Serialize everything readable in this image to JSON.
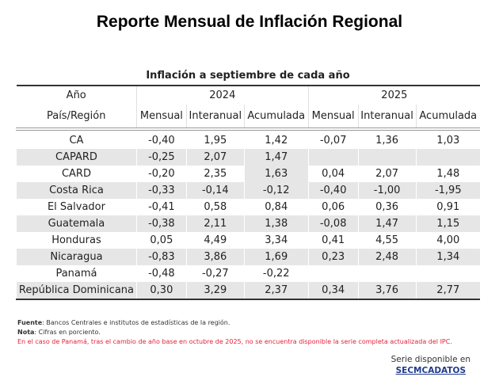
{
  "title": "Reporte Mensual de Inflación Regional",
  "subtitle": "Inflación a septiembre de cada año",
  "header": {
    "year_label": "Año",
    "region_label": "País/Región",
    "years": [
      "2024",
      "2025"
    ],
    "columns": [
      "Mensual",
      "Interanual",
      "Acumulada",
      "Mensual",
      "Interanual",
      "Acumulada"
    ]
  },
  "rows": [
    {
      "region": "CA",
      "values": [
        "-0,40",
        "1,95",
        "1,42",
        "-0,07",
        "1,36",
        "1,03"
      ]
    },
    {
      "region": "CAPARD",
      "values": [
        "-0,25",
        "2,07",
        "1,47",
        "",
        "",
        ""
      ]
    },
    {
      "region": "CARD",
      "values": [
        "-0,20",
        "2,35",
        "1,63",
        "0,04",
        "2,07",
        "1,48"
      ]
    },
    {
      "region": "Costa Rica",
      "values": [
        "-0,33",
        "-0,14",
        "-0,12",
        "-0,40",
        "-1,00",
        "-1,95"
      ]
    },
    {
      "region": "El Salvador",
      "values": [
        "-0,41",
        "0,58",
        "0,84",
        "0,06",
        "0,36",
        "0,91"
      ]
    },
    {
      "region": "Guatemala",
      "values": [
        "-0,38",
        "2,11",
        "1,38",
        "-0,08",
        "1,47",
        "1,15"
      ]
    },
    {
      "region": "Honduras",
      "values": [
        "0,05",
        "4,49",
        "3,34",
        "0,41",
        "4,55",
        "4,00"
      ]
    },
    {
      "region": "Nicaragua",
      "values": [
        "-0,83",
        "3,86",
        "1,69",
        "0,23",
        "2,48",
        "1,34"
      ]
    },
    {
      "region": "Panamá",
      "values": [
        "-0,48",
        "-0,27",
        "-0,22",
        "",
        "",
        ""
      ]
    },
    {
      "region": "República Dominicana",
      "values": [
        "0,30",
        "3,29",
        "2,37",
        "0,34",
        "3,76",
        "2,77"
      ]
    }
  ],
  "notes": {
    "fuente_label": "Fuente",
    "fuente": ": Bancos Centrales e institutos de estadísticas de la región.",
    "nota_label": "Nota",
    "nota": ": Cifras en porciento.",
    "warning": "En el caso de Panamá, tras el cambio de año base en octubre de 2025, no se encuentra disponible la serie completa actualizada del IPC."
  },
  "serie": {
    "text": "Serie disponible en",
    "link": "SECMCADATOS"
  },
  "colors": {
    "stripe": "#e6e6e6",
    "warning": "#e8203a",
    "link": "#1f3b8c"
  }
}
